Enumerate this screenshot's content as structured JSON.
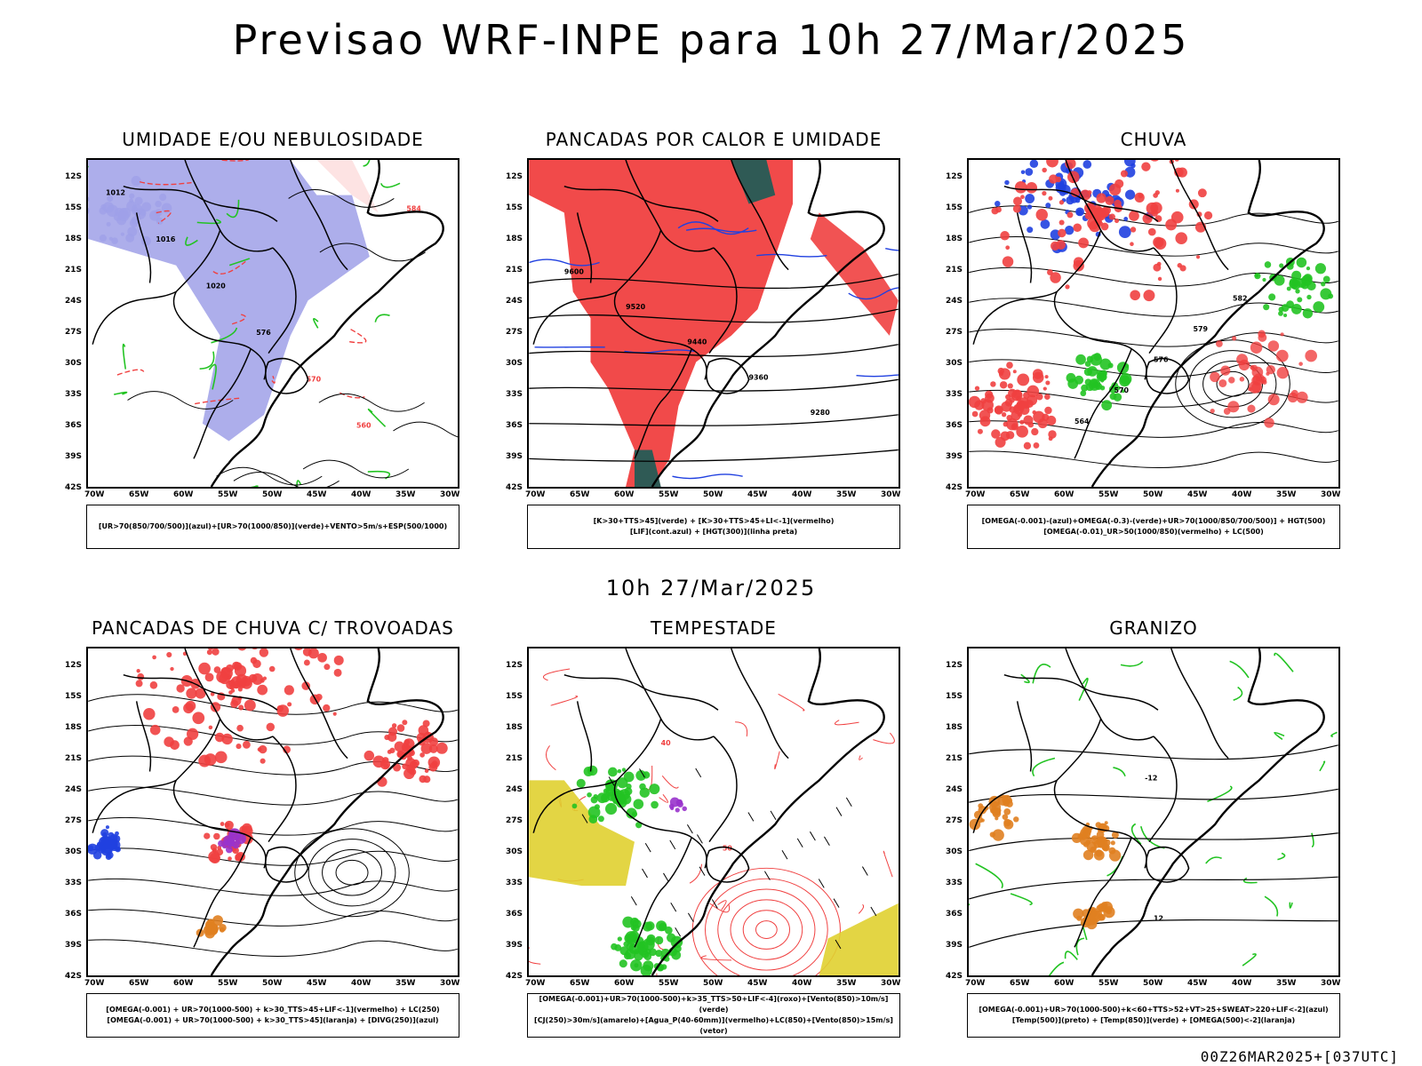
{
  "header": {
    "title": "Previsao WRF-INPE  para 10h 27/Mar/2025"
  },
  "mid_title": "10h 27/Mar/2025",
  "footer": "00Z26MAR2025+[037UTC]",
  "axes": {
    "lat_labels": [
      "12S",
      "15S",
      "18S",
      "21S",
      "24S",
      "27S",
      "30S",
      "33S",
      "36S",
      "39S",
      "42S"
    ],
    "lon_labels": [
      "70W",
      "65W",
      "60W",
      "55W",
      "50W",
      "45W",
      "40W",
      "35W",
      "30W"
    ]
  },
  "panels": [
    {
      "title": "UMIDADE E/OU NEBULOSIDADE",
      "legend": [
        "[UR>70(850/700/500)](azul)+[UR>70(1000/850)](verde)+VENTO>5m/s+ESP(500/1000)"
      ],
      "labels": [
        "1012",
        "1016",
        "1020",
        "576",
        "570",
        "560",
        "584"
      ]
    },
    {
      "title": "PANCADAS POR CALOR E UMIDADE",
      "legend": [
        "[K>30+TTS>45](verde) + [K>30+TTS>45+LI<-1](vermelho)",
        "[LIF](cont.azul) + [HGT(300)](linha preta)"
      ],
      "labels": [
        "9600",
        "9520",
        "9440",
        "9360",
        "9280"
      ]
    },
    {
      "title": "CHUVA",
      "legend": [
        "[OMEGA(-0.001)-(azul)+OMEGA(-0.3)-(verde)+UR>70(1000/850/700/500)] + HGT(500)",
        "[OMEGA(-0.01)_UR>50(1000/850)(vermelho) + LC(500)"
      ],
      "labels": [
        "582",
        "579",
        "576",
        "570",
        "564"
      ]
    },
    {
      "title": "PANCADAS DE CHUVA C/ TROVOADAS",
      "legend": [
        "[OMEGA(-0.001) + UR>70(1000-500) + k>30_TTS>45+LIF<-1](vermelho) + LC(250)",
        "[OMEGA(-0.001) + UR>70(1000-500) + k>30_TTS>45](laranja) + [DIVG(250)](azul)"
      ],
      "labels": []
    },
    {
      "title": "TEMPESTADE",
      "legend": [
        "[OMEGA(-0.001)+UR>70(1000-500)+k>35_TTS>50+LIF<-4](roxo)+[Vento(850)>10m/s](verde)",
        "[CJ(250)>30m/s](amarelo)+[Agua_P(40-60mm)](vermelho)+LC(850)+[Vento(850)>15m/s](vetor)"
      ],
      "labels": [
        "40",
        "50"
      ]
    },
    {
      "title": "GRANIZO",
      "legend": [
        "[OMEGA(-0.001)+UR>70(1000-500)+k<60+TTS>52+VT>25+SWEAT>220+LIF<-2](azul)",
        "[Temp(500)](preto) + [Temp(850)](verde) + [OMEGA(500)<-2](laranja)"
      ],
      "labels": [
        "-12",
        "12"
      ]
    }
  ],
  "colors": {
    "blue_shade": "#9fa0e8",
    "green": "#22c322",
    "red": "#f04040",
    "black": "#000000",
    "yellow": "#e0d030",
    "dark_teal": "#2f5a55",
    "orange": "#e08020",
    "purple": "#9933cc",
    "blue": "#2040e0"
  }
}
